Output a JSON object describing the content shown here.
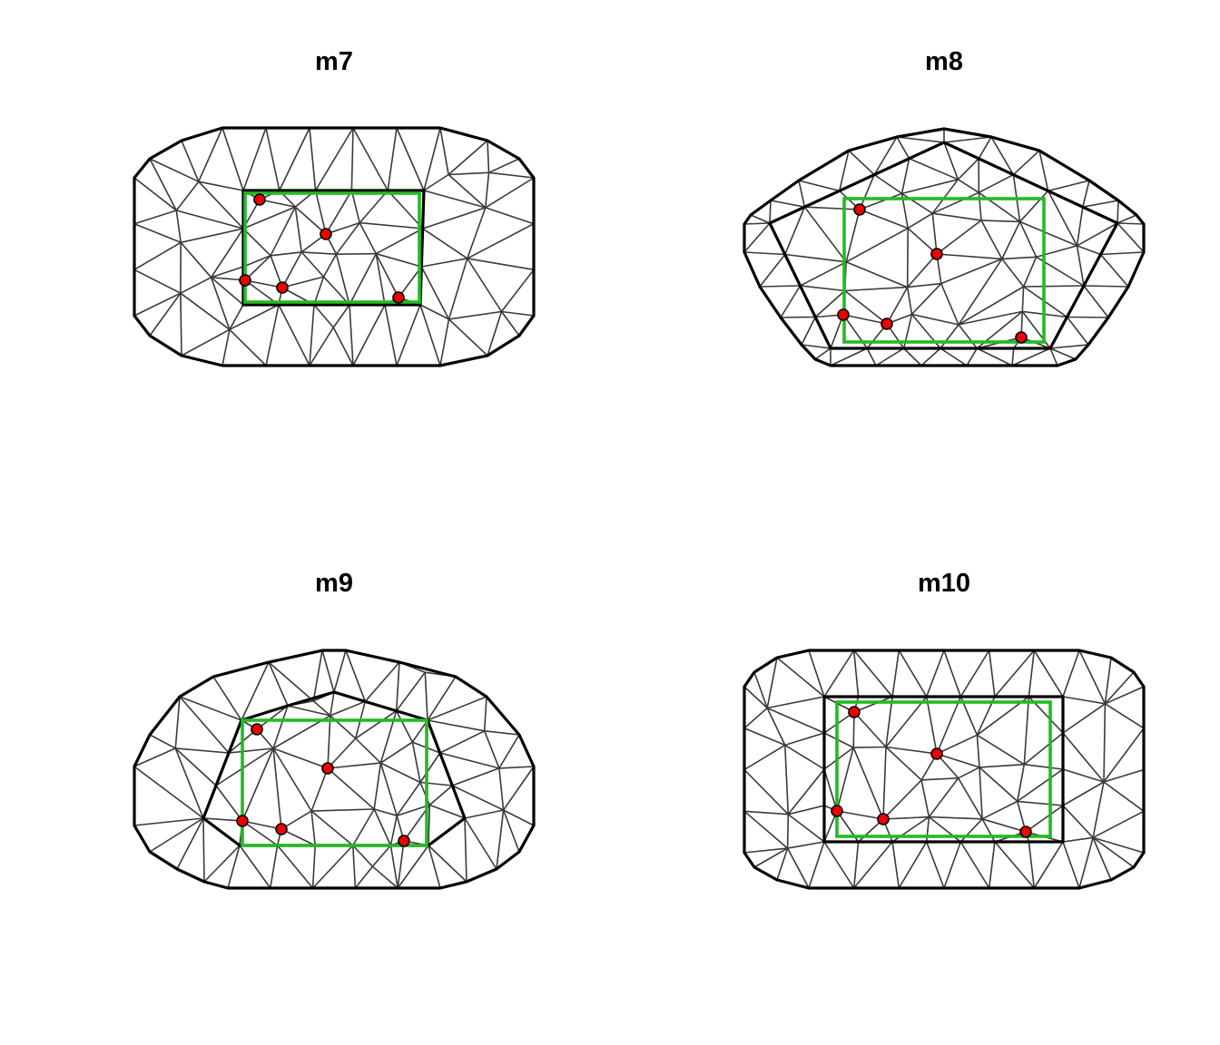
{
  "panels": [
    {
      "title": "m7",
      "outer": "octagon",
      "inner": "rect",
      "data_points": 5
    },
    {
      "title": "m8",
      "outer": "pentagon",
      "inner": "pentagon",
      "data_points": 5
    },
    {
      "title": "m9",
      "outer": "octagon",
      "inner": "pentagon",
      "data_points": 5
    },
    {
      "title": "m10",
      "outer": "octagon",
      "inner": "rect",
      "data_points": 5
    }
  ],
  "colors": {
    "mesh": "#3a3a3a",
    "boundary": "#000000",
    "domain": "#22bb22",
    "points": "#ee0000"
  }
}
